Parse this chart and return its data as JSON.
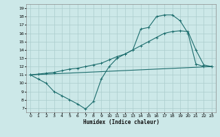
{
  "xlabel": "Humidex (Indice chaleur)",
  "bg_color": "#cce8e8",
  "line_color": "#1a6b6b",
  "grid_color": "#aacccc",
  "ylim": [
    6.5,
    19.5
  ],
  "xlim": [
    -0.5,
    23.5
  ],
  "yticks": [
    7,
    8,
    9,
    10,
    11,
    12,
    13,
    14,
    15,
    16,
    17,
    18,
    19
  ],
  "xticks": [
    0,
    1,
    2,
    3,
    4,
    5,
    6,
    7,
    8,
    9,
    10,
    11,
    12,
    13,
    14,
    15,
    16,
    17,
    18,
    19,
    20,
    21,
    22,
    23
  ],
  "line1_x": [
    0,
    1,
    2,
    3,
    4,
    5,
    6,
    7,
    8,
    9,
    10,
    11,
    12,
    13,
    14,
    15,
    16,
    17,
    18,
    19,
    20,
    21,
    22,
    23
  ],
  "line1_y": [
    11.0,
    10.5,
    10.0,
    9.0,
    8.5,
    8.0,
    7.5,
    6.9,
    7.8,
    10.5,
    12.0,
    13.0,
    13.5,
    14.0,
    16.5,
    16.7,
    18.0,
    18.2,
    18.2,
    17.5,
    16.0,
    12.3,
    12.0,
    12.0
  ],
  "line2_x": [
    0,
    1,
    2,
    3,
    4,
    5,
    6,
    7,
    8,
    9,
    10,
    11,
    12,
    13,
    14,
    15,
    16,
    17,
    18,
    19,
    20,
    21,
    22,
    23
  ],
  "line2_y": [
    11.0,
    11.1,
    11.2,
    11.3,
    11.5,
    11.7,
    11.8,
    12.0,
    12.2,
    12.4,
    12.8,
    13.2,
    13.5,
    14.0,
    14.5,
    15.0,
    15.5,
    16.0,
    16.2,
    16.3,
    16.2,
    14.0,
    12.2,
    12.0
  ],
  "line3_x": [
    0,
    23
  ],
  "line3_y": [
    11.0,
    12.0
  ]
}
